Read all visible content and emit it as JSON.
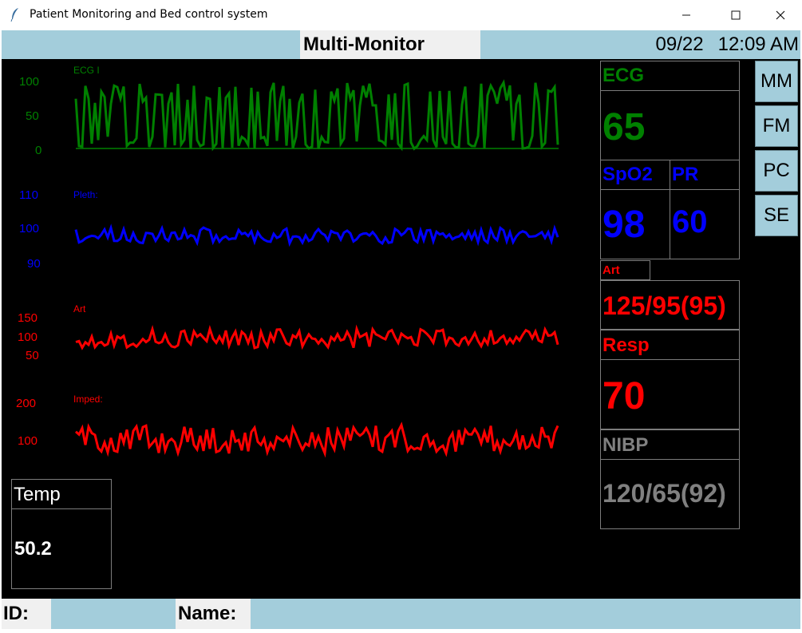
{
  "window": {
    "title": "Patient Monitoring and Bed control system",
    "controls": [
      "minimize-icon",
      "maximize-icon",
      "close-icon"
    ]
  },
  "header": {
    "screen_title": "Multi-Monitor",
    "date": "09/22",
    "time": "12:09 AM"
  },
  "waveforms": [
    {
      "label": "ECG I",
      "color": "#008000",
      "scale": [
        "100",
        "50",
        "0"
      ]
    },
    {
      "label": "Pleth:",
      "color": "#0000ff",
      "scale": [
        "110",
        "100",
        "90"
      ]
    },
    {
      "label": "Art",
      "color": "#ff0000",
      "scale": [
        "150",
        "100",
        "50"
      ]
    },
    {
      "label": "Imped:",
      "color": "#ff0000",
      "scale": [
        "200",
        "100"
      ]
    }
  ],
  "vitals": {
    "ecg": {
      "label": "ECG",
      "value": "65",
      "color": "#008000"
    },
    "spo2": {
      "label": "SpO2",
      "value": "98",
      "color": "#0000ff"
    },
    "pr": {
      "label": "PR",
      "value": "60",
      "color": "#0000ff"
    },
    "art": {
      "label": "Art",
      "value": "125/95(95)",
      "color": "#ff0000"
    },
    "resp": {
      "label": "Resp",
      "value": "70",
      "color": "#ff0000"
    },
    "nibp": {
      "label": "NIBP",
      "value": "120/65(92)",
      "color": "#808080"
    },
    "temp": {
      "label": "Temp",
      "value": "50.2",
      "color": "#ffffff"
    }
  },
  "nav_buttons": [
    "MM",
    "FM",
    "PC",
    "SE"
  ],
  "footer": {
    "id_label": "ID:",
    "id_value": "",
    "name_label": "Name:",
    "name_value": ""
  }
}
